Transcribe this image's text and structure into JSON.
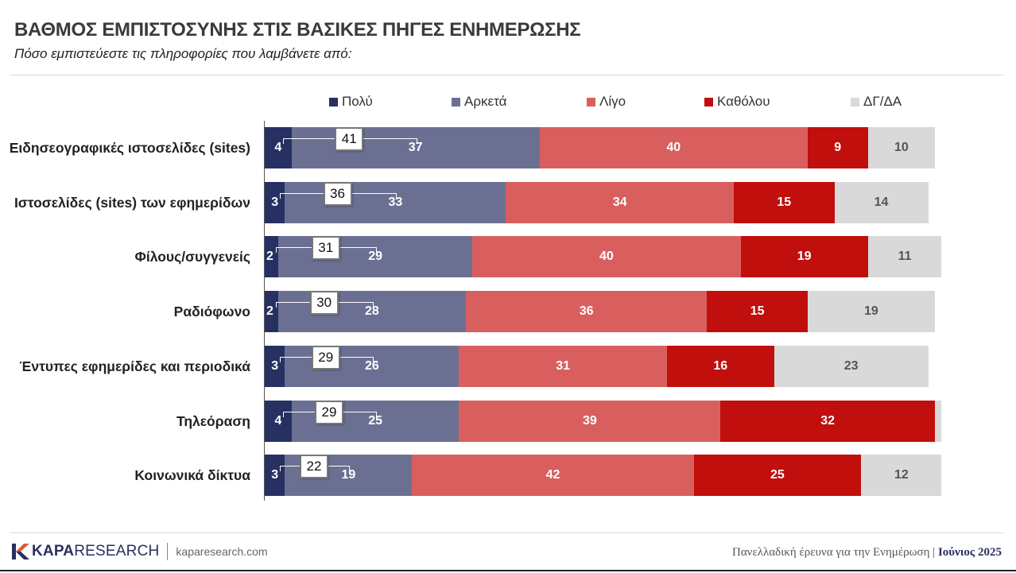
{
  "header": {
    "title": "ΒΑΘΜΟΣ ΕΜΠΙΣΤΟΣΥΝΗΣ ΣΤΙΣ ΒΑΣΙΚΕΣ ΠΗΓΕΣ ΕΝΗΜΕΡΩΣΗΣ",
    "subtitle": "Πόσο εμπιστεύεστε τις πληροφορίες που λαμβάνετε από:"
  },
  "chart_data": {
    "type": "bar",
    "orientation": "horizontal",
    "stacked": true,
    "title": "ΒΑΘΜΟΣ ΕΜΠΙΣΤΟΣΥΝΗΣ ΣΤΙΣ ΒΑΣΙΚΕΣ ΠΗΓΕΣ ΕΝΗΜΕΡΩΣΗΣ",
    "subtitle": "Πόσο εμπιστεύεστε τις πληροφορίες που λαμβάνετε από:",
    "legend_position": "top",
    "grid": false,
    "xlim": [
      0,
      100
    ],
    "categories": [
      "Ειδησεογραφικές ιστοσελίδες (sites)",
      "Ιστοσελίδες (sites) των εφημερίδων",
      "Φίλους/συγγενείς",
      "Ραδιόφωνο",
      "Έντυπες εφημερίδες και περιοδικά",
      "Τηλεόραση",
      "Κοινωνικά δίκτυα"
    ],
    "series": [
      {
        "name": "Πολύ",
        "color": "#263063",
        "values": [
          4,
          3,
          2,
          2,
          3,
          4,
          3
        ]
      },
      {
        "name": "Αρκετά",
        "color": "#6b7093",
        "values": [
          37,
          33,
          29,
          28,
          26,
          25,
          19
        ]
      },
      {
        "name": "Λίγο",
        "color": "#d95f5f",
        "values": [
          40,
          34,
          40,
          36,
          31,
          39,
          42
        ]
      },
      {
        "name": "Καθόλου",
        "color": "#c00f0c",
        "values": [
          9,
          15,
          19,
          15,
          16,
          32,
          25
        ]
      },
      {
        "name": "ΔΓ/ΔΑ",
        "color": "#d9d9d9",
        "values": [
          10,
          14,
          11,
          19,
          23,
          1,
          12
        ]
      }
    ],
    "totals_label_values": [
      41,
      36,
      31,
      30,
      29,
      29,
      22
    ]
  },
  "footer": {
    "logo_bold": "KAPA",
    "logo_light": "RESEARCH",
    "url": "kaparesearch.com",
    "source": "Πανελλαδική έρευνα για την Ενημέρωση",
    "separator": "|",
    "date": "Ιούνιος 2025"
  }
}
